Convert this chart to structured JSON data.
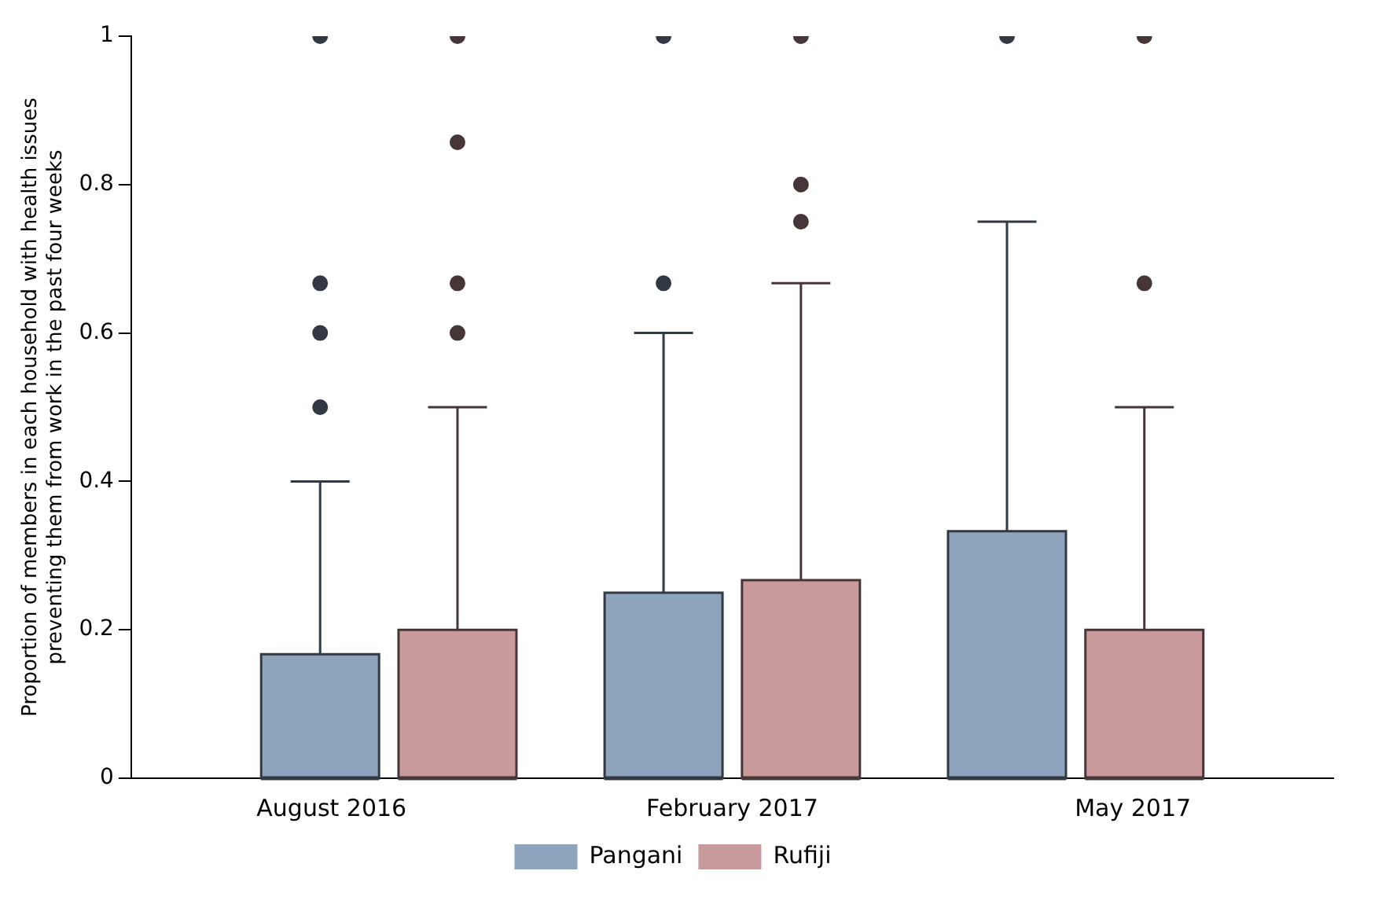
{
  "chart_data": {
    "type": "box",
    "ylabel": "Proportion of members in each household with health issues preventing them from work in the past four weeks",
    "categories": [
      "August 2016",
      "February 2017",
      "May 2017"
    ],
    "series": [
      {
        "name": "Pangani",
        "color": "#8ea4bd",
        "boxes": [
          {
            "low": 0,
            "q1": 0,
            "median": 0,
            "q3": 0.167,
            "high": 0.4,
            "outliers": [
              0.5,
              0.6,
              0.667,
              1
            ]
          },
          {
            "low": 0,
            "q1": 0,
            "median": 0,
            "q3": 0.25,
            "high": 0.6,
            "outliers": [
              0.667,
              1
            ]
          },
          {
            "low": 0,
            "q1": 0,
            "median": 0,
            "q3": 0.333,
            "high": 0.75,
            "outliers": [
              1
            ]
          }
        ]
      },
      {
        "name": "Rufiji",
        "color": "#c99a9c",
        "boxes": [
          {
            "low": 0,
            "q1": 0,
            "median": 0,
            "q3": 0.2,
            "high": 0.5,
            "outliers": [
              0.6,
              0.667,
              0.857,
              1
            ]
          },
          {
            "low": 0,
            "q1": 0,
            "median": 0,
            "q3": 0.267,
            "high": 0.667,
            "outliers": [
              0.75,
              0.8,
              1
            ]
          },
          {
            "low": 0,
            "q1": 0,
            "median": 0,
            "q3": 0.2,
            "high": 0.5,
            "outliers": [
              0.667,
              1
            ]
          }
        ]
      }
    ],
    "ylim": [
      0,
      1
    ],
    "yticks": [
      0,
      0.2,
      0.4,
      0.6,
      0.8,
      1
    ],
    "grid": false,
    "legend": "bottom"
  }
}
